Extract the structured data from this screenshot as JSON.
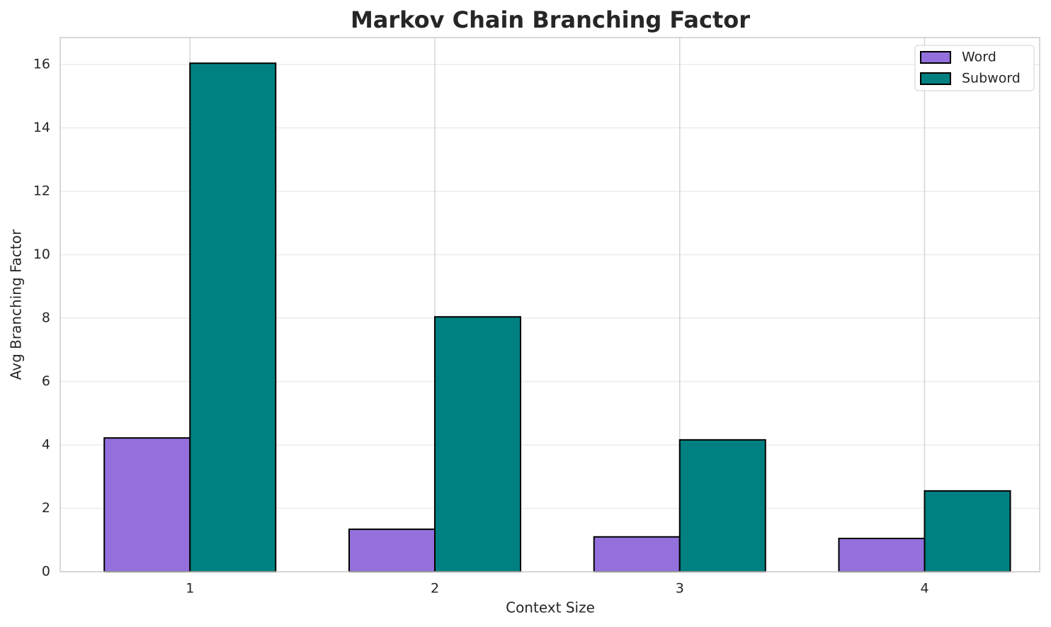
{
  "chart_data": {
    "type": "bar",
    "title": "Markov Chain Branching Factor",
    "x_label": "Context Size",
    "y_label": "Avg Branching Factor",
    "categories": [
      "1",
      "2",
      "3",
      "4"
    ],
    "series": [
      {
        "name": "Word",
        "color": "#9370db",
        "values": [
          4.22,
          1.34,
          1.1,
          1.05
        ]
      },
      {
        "name": "Subword",
        "color": "#008080",
        "values": [
          16.04,
          8.04,
          4.16,
          2.55
        ]
      }
    ],
    "ylim": [
      0,
      16.85
    ],
    "yticks": [
      0,
      2,
      4,
      6,
      8,
      10,
      12,
      14,
      16
    ],
    "grid": true,
    "legend": "upper right"
  }
}
